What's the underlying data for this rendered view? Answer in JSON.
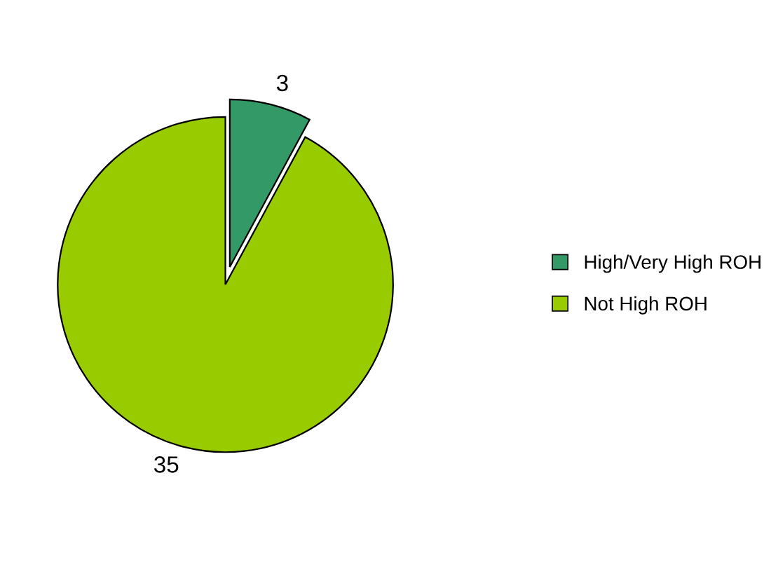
{
  "chart_data": {
    "type": "pie",
    "categories": [
      "High/Very High ROH",
      "Not High ROH"
    ],
    "values": [
      3,
      35
    ],
    "colors": [
      "#339966",
      "#99cc00"
    ],
    "data_labels": true,
    "legend": "right"
  }
}
